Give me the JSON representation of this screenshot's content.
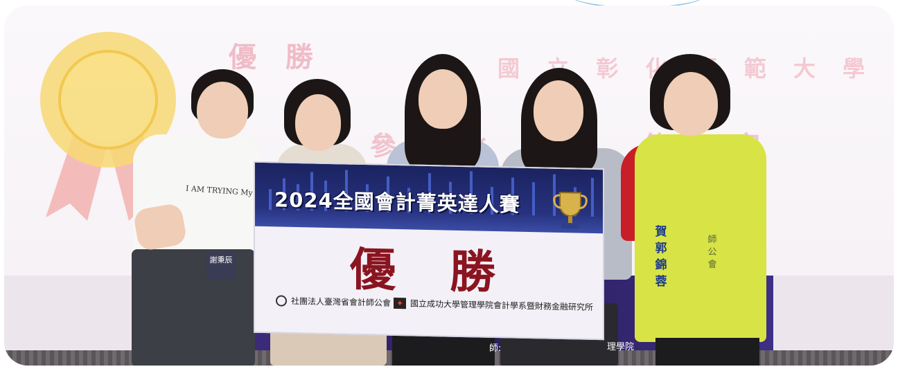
{
  "background": {
    "award_text": "優 勝",
    "school_text": "國 立 彰 化 師 範 大 學",
    "partial_text": "參 比 頒 傳 家"
  },
  "board": {
    "title": "2024全國會計菁英達人賽",
    "award": "優勝",
    "org_left": "社團法人臺灣省會計師公會",
    "org_right": "國立成功大學管理學院會計學系暨財務金融研究所"
  },
  "badge": {
    "name": "謝秉辰"
  },
  "shirt_text": "I AM TRYING My Best",
  "vest": {
    "name_vertical": "賀郭錦蓉",
    "side_text": "師公會"
  },
  "stage": {
    "text_left": "師:",
    "text_right": "理學院"
  },
  "colors": {
    "award_red": "#8a1420",
    "board_blue": "#1b2360",
    "vest_yellow": "#d8e346",
    "jacket_red": "#c81e28"
  }
}
